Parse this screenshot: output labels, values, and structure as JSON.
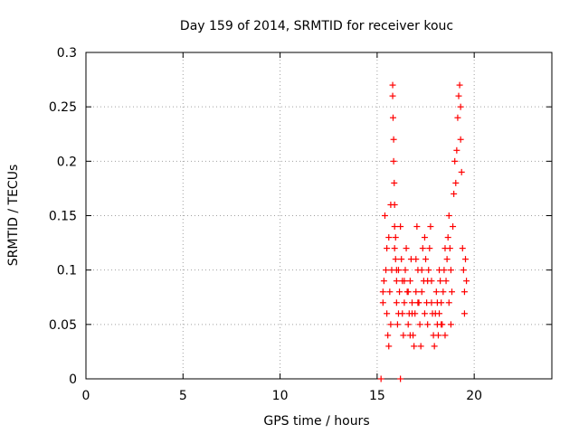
{
  "chart_data": {
    "type": "scatter",
    "title": "Day 159 of 2014, SRMTID for receiver kouc",
    "xlabel": "GPS time / hours",
    "ylabel": "SRMTID / TECUs",
    "xlim": [
      0,
      24
    ],
    "ylim": [
      0,
      0.3
    ],
    "xticks": [
      0,
      5,
      10,
      15,
      20
    ],
    "xtick_labels": [
      "0",
      "5",
      "10",
      "15",
      "20"
    ],
    "yticks": [
      0,
      0.05,
      0.1,
      0.15,
      0.2,
      0.25,
      0.3
    ],
    "ytick_labels": [
      "0",
      "0.05",
      "0.1",
      "0.15",
      "0.2",
      "0.25",
      "0.3"
    ],
    "grid": true,
    "marker": "+",
    "color": "#ff0000",
    "series": [
      {
        "name": "SRMTID",
        "points": [
          [
            15.2,
            0.0
          ],
          [
            16.2,
            0.0
          ],
          [
            15.3,
            0.08
          ],
          [
            15.3,
            0.07
          ],
          [
            15.35,
            0.09
          ],
          [
            15.4,
            0.15
          ],
          [
            15.45,
            0.1
          ],
          [
            15.5,
            0.12
          ],
          [
            15.5,
            0.06
          ],
          [
            15.55,
            0.04
          ],
          [
            15.6,
            0.03
          ],
          [
            15.6,
            0.13
          ],
          [
            15.65,
            0.08
          ],
          [
            15.7,
            0.05
          ],
          [
            15.7,
            0.16
          ],
          [
            15.75,
            0.1
          ],
          [
            15.8,
            0.27
          ],
          [
            15.8,
            0.26
          ],
          [
            15.82,
            0.24
          ],
          [
            15.85,
            0.22
          ],
          [
            15.85,
            0.2
          ],
          [
            15.88,
            0.18
          ],
          [
            15.9,
            0.14
          ],
          [
            15.9,
            0.12
          ],
          [
            15.95,
            0.13
          ],
          [
            16.0,
            0.09
          ],
          [
            16.0,
            0.07
          ],
          [
            16.05,
            0.05
          ],
          [
            16.1,
            0.06
          ],
          [
            16.1,
            0.1
          ],
          [
            16.15,
            0.08
          ],
          [
            16.2,
            0.14
          ],
          [
            16.25,
            0.11
          ],
          [
            16.3,
            0.09
          ],
          [
            16.3,
            0.06
          ],
          [
            16.35,
            0.04
          ],
          [
            16.4,
            0.07
          ],
          [
            16.45,
            0.1
          ],
          [
            16.5,
            0.12
          ],
          [
            16.55,
            0.08
          ],
          [
            16.6,
            0.05
          ],
          [
            16.65,
            0.06
          ],
          [
            16.7,
            0.09
          ],
          [
            16.75,
            0.11
          ],
          [
            16.8,
            0.07
          ],
          [
            16.85,
            0.04
          ],
          [
            16.9,
            0.03
          ],
          [
            16.95,
            0.06
          ],
          [
            17.0,
            0.08
          ],
          [
            17.0,
            0.11
          ],
          [
            17.05,
            0.14
          ],
          [
            17.1,
            0.1
          ],
          [
            17.15,
            0.07
          ],
          [
            17.2,
            0.05
          ],
          [
            17.25,
            0.03
          ],
          [
            17.3,
            0.08
          ],
          [
            17.35,
            0.12
          ],
          [
            17.4,
            0.09
          ],
          [
            17.45,
            0.13
          ],
          [
            17.5,
            0.11
          ],
          [
            17.55,
            0.07
          ],
          [
            17.6,
            0.05
          ],
          [
            17.65,
            0.1
          ],
          [
            17.7,
            0.12
          ],
          [
            17.75,
            0.14
          ],
          [
            17.8,
            0.09
          ],
          [
            17.85,
            0.06
          ],
          [
            17.9,
            0.04
          ],
          [
            17.95,
            0.03
          ],
          [
            18.0,
            0.06
          ],
          [
            18.05,
            0.08
          ],
          [
            18.1,
            0.05
          ],
          [
            18.15,
            0.04
          ],
          [
            18.2,
            0.06
          ],
          [
            18.25,
            0.09
          ],
          [
            18.3,
            0.07
          ],
          [
            18.35,
            0.05
          ],
          [
            18.4,
            0.08
          ],
          [
            18.45,
            0.1
          ],
          [
            18.5,
            0.12
          ],
          [
            18.55,
            0.09
          ],
          [
            18.6,
            0.11
          ],
          [
            18.65,
            0.13
          ],
          [
            18.7,
            0.15
          ],
          [
            18.75,
            0.12
          ],
          [
            18.8,
            0.1
          ],
          [
            18.85,
            0.08
          ],
          [
            18.9,
            0.14
          ],
          [
            18.95,
            0.17
          ],
          [
            19.0,
            0.2
          ],
          [
            19.05,
            0.18
          ],
          [
            19.1,
            0.21
          ],
          [
            19.15,
            0.24
          ],
          [
            19.2,
            0.26
          ],
          [
            19.25,
            0.27
          ],
          [
            19.3,
            0.25
          ],
          [
            19.3,
            0.22
          ],
          [
            19.35,
            0.19
          ],
          [
            19.4,
            0.12
          ],
          [
            19.45,
            0.1
          ],
          [
            19.5,
            0.08
          ],
          [
            19.5,
            0.06
          ],
          [
            19.55,
            0.11
          ],
          [
            19.6,
            0.09
          ],
          [
            16.0,
            0.1
          ],
          [
            16.4,
            0.09
          ],
          [
            16.6,
            0.08
          ],
          [
            16.8,
            0.06
          ],
          [
            17.1,
            0.07
          ],
          [
            17.3,
            0.1
          ],
          [
            17.6,
            0.09
          ],
          [
            17.8,
            0.07
          ],
          [
            18.1,
            0.07
          ],
          [
            18.3,
            0.05
          ],
          [
            18.5,
            0.04
          ],
          [
            18.7,
            0.07
          ],
          [
            15.9,
            0.16
          ],
          [
            15.95,
            0.11
          ],
          [
            16.7,
            0.04
          ],
          [
            17.45,
            0.06
          ],
          [
            18.2,
            0.1
          ],
          [
            18.8,
            0.05
          ]
        ]
      }
    ]
  }
}
